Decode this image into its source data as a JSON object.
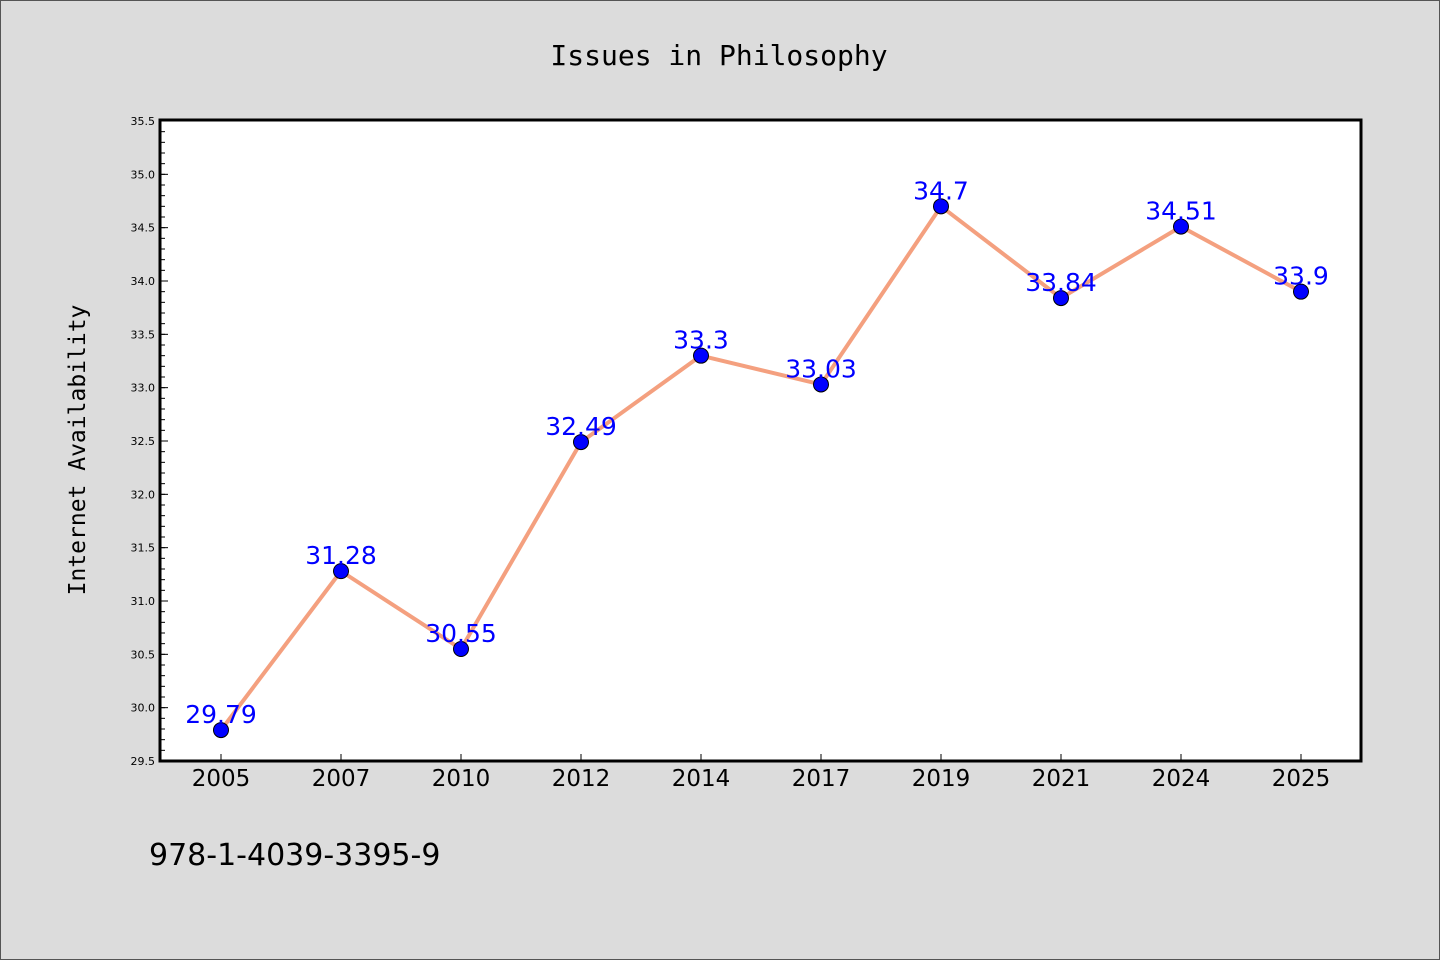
{
  "chart_data": {
    "type": "line",
    "title": "Issues in Philosophy",
    "xlabel": "",
    "ylabel": "Internet Availability",
    "categories": [
      "2005",
      "2007",
      "2010",
      "2012",
      "2014",
      "2017",
      "2019",
      "2021",
      "2024",
      "2025"
    ],
    "series": [
      {
        "values": [
          29.79,
          31.28,
          30.55,
          32.49,
          33.3,
          33.03,
          34.7,
          33.84,
          34.51,
          33.9
        ],
        "labels": [
          "29.79",
          "31.28",
          "30.55",
          "32.49",
          "33.3",
          "33.03",
          "34.7",
          "33.84",
          "34.51",
          "33.9"
        ]
      }
    ],
    "ylim": [
      29.5,
      35.5
    ],
    "yticks": [
      "29.5",
      "30.0",
      "30.5",
      "31.0",
      "31.5",
      "32.0",
      "32.5",
      "33.0",
      "33.5",
      "34.0",
      "34.5",
      "35.0",
      "35.5"
    ],
    "grid": false,
    "legend": "none"
  },
  "footer": {
    "isbn": "978-1-4039-3395-9"
  },
  "colors": {
    "line": "#f4a07f",
    "marker": "#0000ff",
    "label": "#0000ff",
    "background": "#dcdcdc",
    "plot_background": "#ffffff"
  }
}
